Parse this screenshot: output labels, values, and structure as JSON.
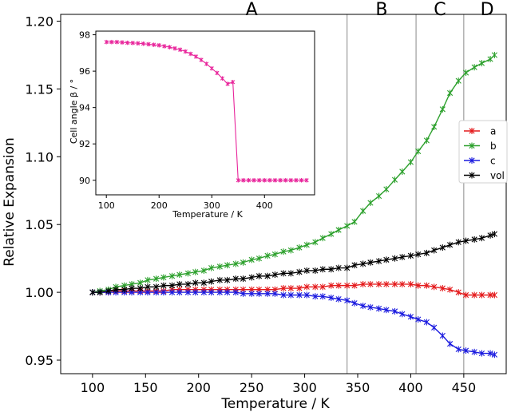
{
  "chart_data": [
    {
      "type": "line",
      "xlabel": "Temperature / K",
      "ylabel": "Relative Expansion",
      "xlim": [
        70,
        490
      ],
      "ylim": [
        0.94,
        1.205
      ],
      "x_ticks": [
        100,
        150,
        200,
        250,
        300,
        350,
        400,
        450
      ],
      "y_ticks": [
        0.95,
        1.0,
        1.05,
        1.1,
        1.15,
        1.2
      ],
      "x_tick_labels": [
        "100",
        "150",
        "200",
        "250",
        "300",
        "350",
        "400",
        "450"
      ],
      "y_tick_labels": [
        "0.95",
        "1.00",
        "1.05",
        "1.10",
        "1.15",
        "1.20"
      ],
      "grid": false,
      "legend_position": "right",
      "phase_boundaries": [
        340,
        405,
        450
      ],
      "phase_labels": [
        {
          "label": "A",
          "x": 250
        },
        {
          "label": "B",
          "x": 372.5
        },
        {
          "label": "C",
          "x": 427.5
        },
        {
          "label": "D",
          "x": 472
        }
      ],
      "x": [
        100,
        107,
        115,
        122,
        130,
        137,
        145,
        152,
        160,
        167,
        175,
        182,
        190,
        197,
        205,
        212,
        220,
        227,
        235,
        242,
        250,
        257,
        265,
        272,
        280,
        287,
        295,
        302,
        310,
        317,
        325,
        332,
        340,
        347,
        355,
        362,
        370,
        377,
        385,
        392,
        400,
        407,
        415,
        422,
        430,
        437,
        445,
        452,
        460,
        467,
        475,
        479
      ],
      "series": [
        {
          "name": "a",
          "color": "#e41a1c",
          "values": [
            1.0,
            1.0,
            1.0,
            1.001,
            1.001,
            1.001,
            1.001,
            1.001,
            1.001,
            1.001,
            1.002,
            1.002,
            1.002,
            1.002,
            1.002,
            1.002,
            1.002,
            1.002,
            1.002,
            1.002,
            1.002,
            1.002,
            1.002,
            1.002,
            1.003,
            1.003,
            1.003,
            1.004,
            1.004,
            1.004,
            1.005,
            1.005,
            1.005,
            1.005,
            1.006,
            1.006,
            1.006,
            1.006,
            1.006,
            1.006,
            1.006,
            1.005,
            1.005,
            1.004,
            1.003,
            1.002,
            1.0,
            0.998,
            0.998,
            0.998,
            0.998,
            0.998
          ]
        },
        {
          "name": "b",
          "color": "#2ca02c",
          "values": [
            1.0,
            1.001,
            1.002,
            1.004,
            1.005,
            1.006,
            1.007,
            1.009,
            1.01,
            1.011,
            1.012,
            1.013,
            1.014,
            1.015,
            1.016,
            1.018,
            1.019,
            1.02,
            1.021,
            1.022,
            1.024,
            1.025,
            1.027,
            1.028,
            1.03,
            1.031,
            1.033,
            1.035,
            1.037,
            1.04,
            1.043,
            1.046,
            1.049,
            1.052,
            1.06,
            1.066,
            1.071,
            1.076,
            1.083,
            1.089,
            1.096,
            1.104,
            1.112,
            1.122,
            1.135,
            1.147,
            1.156,
            1.162,
            1.166,
            1.169,
            1.172,
            1.175
          ]
        },
        {
          "name": "c",
          "color": "#1a1adf",
          "values": [
            1.0,
            1.0,
            1.0,
            1.0,
            1.0,
            1.0,
            1.0,
            1.0,
            1.0,
            1.0,
            1.0,
            1.0,
            1.0,
            1.0,
            1.0,
            1.0,
            1.0,
            1.0,
            1.0,
            0.999,
            0.999,
            0.999,
            0.999,
            0.999,
            0.998,
            0.998,
            0.998,
            0.998,
            0.997,
            0.997,
            0.996,
            0.995,
            0.994,
            0.992,
            0.99,
            0.989,
            0.988,
            0.987,
            0.986,
            0.984,
            0.982,
            0.98,
            0.978,
            0.974,
            0.968,
            0.962,
            0.958,
            0.957,
            0.956,
            0.955,
            0.955,
            0.954
          ]
        },
        {
          "name": "vol",
          "color": "#000000",
          "values": [
            1.0,
            1.0,
            1.001,
            1.002,
            1.002,
            1.003,
            1.003,
            1.004,
            1.004,
            1.005,
            1.005,
            1.006,
            1.006,
            1.007,
            1.007,
            1.008,
            1.009,
            1.009,
            1.01,
            1.01,
            1.011,
            1.012,
            1.012,
            1.013,
            1.014,
            1.014,
            1.015,
            1.016,
            1.016,
            1.017,
            1.017,
            1.018,
            1.018,
            1.02,
            1.021,
            1.022,
            1.023,
            1.024,
            1.025,
            1.026,
            1.027,
            1.028,
            1.029,
            1.031,
            1.033,
            1.035,
            1.037,
            1.038,
            1.039,
            1.04,
            1.042,
            1.043
          ]
        }
      ]
    },
    {
      "type": "line",
      "xlabel": "Temperature / K",
      "ylabel": "Cell angle β / °",
      "xlim": [
        80,
        495
      ],
      "ylim": [
        89.2,
        98.2
      ],
      "x_ticks": [
        100,
        200,
        300,
        400
      ],
      "y_ticks": [
        90,
        92,
        94,
        96,
        98
      ],
      "x_tick_labels": [
        "100",
        "200",
        "300",
        "400"
      ],
      "y_tick_labels": [
        "90",
        "92",
        "94",
        "96",
        "98"
      ],
      "grid": false,
      "series": [
        {
          "color": "#e8259b",
          "x": [
            100,
            110,
            120,
            130,
            140,
            150,
            160,
            170,
            180,
            190,
            200,
            210,
            220,
            230,
            240,
            250,
            260,
            270,
            280,
            290,
            300,
            310,
            320,
            330,
            340,
            350,
            360,
            370,
            380,
            390,
            400,
            410,
            420,
            430,
            440,
            450,
            460,
            470,
            480
          ],
          "values": [
            97.6,
            97.6,
            97.6,
            97.58,
            97.56,
            97.55,
            97.53,
            97.51,
            97.48,
            97.45,
            97.42,
            97.37,
            97.32,
            97.25,
            97.18,
            97.08,
            96.95,
            96.8,
            96.62,
            96.4,
            96.15,
            95.9,
            95.6,
            95.3,
            95.4,
            90.0,
            90.0,
            90.0,
            90.0,
            90.0,
            90.0,
            90.0,
            90.0,
            90.0,
            90.0,
            90.0,
            90.0,
            90.0,
            90.0
          ]
        }
      ]
    }
  ]
}
